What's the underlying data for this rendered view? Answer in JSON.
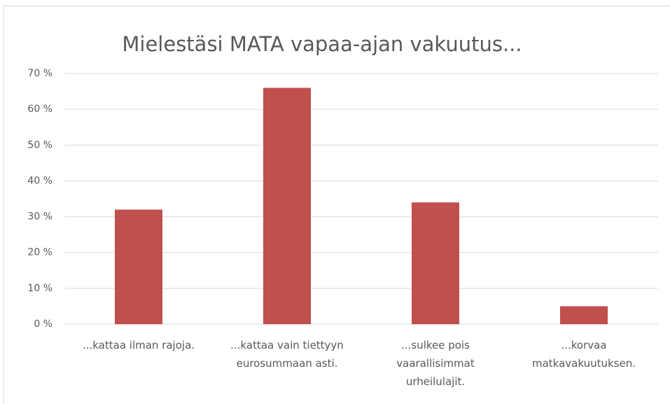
{
  "chart_data": {
    "type": "bar",
    "title": "Mielestäsi MATA vapaa-ajan vakuutus...",
    "categories": [
      "...kattaa ilman rajoja.",
      "...kattaa vain tiettyyn eurosummaan asti.",
      "...sulkee pois vaarallisimmat urheilulajit.",
      "...korvaa matkavakuutuksen."
    ],
    "values": [
      32,
      66,
      34,
      5
    ],
    "color": "#c0504d",
    "ylim": [
      0,
      70
    ],
    "yticks": [
      {
        "value": 0,
        "label": "0 %"
      },
      {
        "value": 10,
        "label": "10 %"
      },
      {
        "value": 20,
        "label": "20 %"
      },
      {
        "value": 30,
        "label": "30 %"
      },
      {
        "value": 40,
        "label": "40 %"
      },
      {
        "value": 50,
        "label": "50 %"
      },
      {
        "value": 60,
        "label": "60 %"
      },
      {
        "value": 70,
        "label": "70 %"
      }
    ],
    "grid": true
  }
}
